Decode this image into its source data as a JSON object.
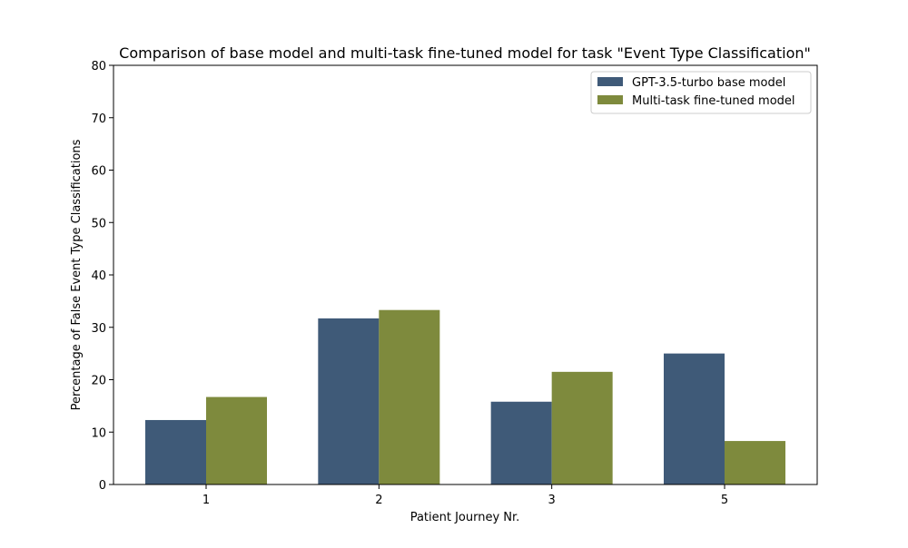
{
  "chart_data": {
    "type": "bar",
    "title": "Comparison of base model and multi-task fine-tuned model for task \"Event Type Classification\"",
    "xlabel": "Patient Journey Nr.",
    "ylabel": "Percentage of False Event Type Classifications",
    "categories": [
      "1",
      "2",
      "3",
      "5"
    ],
    "ylim": [
      0,
      80
    ],
    "yticks": [
      0,
      10,
      20,
      30,
      40,
      50,
      60,
      70,
      80
    ],
    "grid": false,
    "legend_position": "top-right",
    "series": [
      {
        "name": "GPT-3.5-turbo base model",
        "color": "#3f5a78",
        "values": [
          12.3,
          31.7,
          15.8,
          25.0
        ]
      },
      {
        "name": "Multi-task fine-tuned model",
        "color": "#7e8a3d",
        "values": [
          16.7,
          33.3,
          21.5,
          8.3
        ]
      }
    ]
  }
}
